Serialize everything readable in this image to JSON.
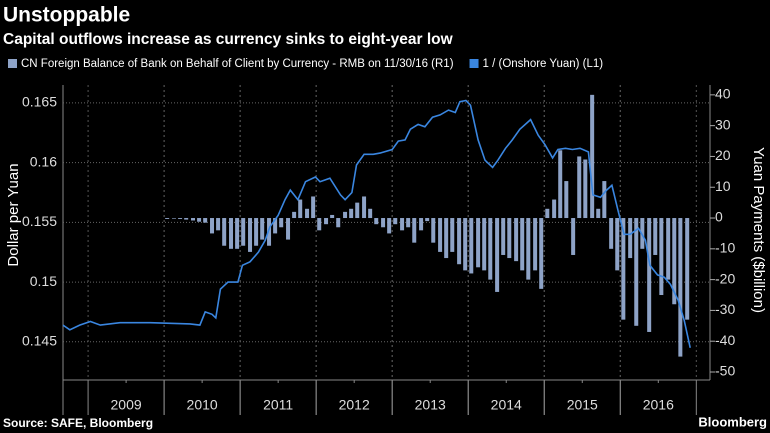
{
  "chart_data": {
    "type": "bar-line",
    "title": "Unstoppable",
    "subtitle": "Capital outflows increase as currency sinks to eight-year low",
    "y_label": "Dollar per Yuan",
    "y2_label": "Yuan Payments ($billion)",
    "source": "Source: SAFE, Bloomberg",
    "brand": "Bloomberg",
    "xlim": [
      2008.67,
      2017.18
    ],
    "xticks": [
      {
        "value": 2009.5,
        "label": "2009"
      },
      {
        "value": 2010.5,
        "label": "2010"
      },
      {
        "value": 2011.5,
        "label": "2011"
      },
      {
        "value": 2012.5,
        "label": "2012"
      },
      {
        "value": 2013.5,
        "label": "2013"
      },
      {
        "value": 2014.5,
        "label": "2014"
      },
      {
        "value": 2015.5,
        "label": "2015"
      },
      {
        "value": 2016.5,
        "label": "2016"
      }
    ],
    "ylim": [
      0.1418,
      0.1665
    ],
    "yticks": [
      0.145,
      0.15,
      0.155,
      0.16,
      0.165
    ],
    "y2lim": [
      -52.6,
      43.2
    ],
    "y2ticks": [
      -50,
      -40,
      -30,
      -20,
      -10,
      0,
      10,
      20,
      30,
      40
    ],
    "grid": true,
    "series": [
      {
        "name": "CN Foreign Balance of Bank on Behalf of Client by Currency - RMB  on 11/30/16 (R1)",
        "kind": "bar",
        "axis": "y2",
        "color": "#8ea3c7",
        "x": [
          2010.04,
          2010.13,
          2010.21,
          2010.29,
          2010.38,
          2010.46,
          2010.54,
          2010.63,
          2010.71,
          2010.79,
          2010.88,
          2010.96,
          2011.04,
          2011.13,
          2011.21,
          2011.29,
          2011.38,
          2011.46,
          2011.54,
          2011.63,
          2011.71,
          2011.79,
          2011.88,
          2011.96,
          2012.04,
          2012.13,
          2012.21,
          2012.29,
          2012.38,
          2012.46,
          2012.54,
          2012.63,
          2012.71,
          2012.79,
          2012.88,
          2012.96,
          2013.04,
          2013.13,
          2013.21,
          2013.29,
          2013.38,
          2013.46,
          2013.54,
          2013.63,
          2013.71,
          2013.79,
          2013.88,
          2013.96,
          2014.04,
          2014.13,
          2014.21,
          2014.29,
          2014.38,
          2014.46,
          2014.54,
          2014.63,
          2014.71,
          2014.79,
          2014.88,
          2014.96,
          2015.04,
          2015.13,
          2015.21,
          2015.29,
          2015.38,
          2015.46,
          2015.54,
          2015.63,
          2015.71,
          2015.79,
          2015.88,
          2015.96,
          2016.04,
          2016.13,
          2016.21,
          2016.29,
          2016.38,
          2016.46,
          2016.54,
          2016.63,
          2016.71,
          2016.79,
          2016.88
        ],
        "values": [
          -0.3,
          -0.2,
          -0.3,
          -0.5,
          -0.8,
          -1.2,
          -1.5,
          -5,
          -4,
          -9,
          -10,
          -10,
          -9,
          -11,
          -9,
          -7,
          -9,
          -5,
          -3,
          -7,
          2,
          6,
          3,
          7,
          -4,
          -2,
          1,
          -3,
          2,
          3,
          5,
          7,
          3,
          -2,
          -3,
          -5,
          -2,
          -4,
          -3,
          -8,
          -4,
          -1,
          -8,
          -11,
          -13,
          -11,
          -15,
          -17,
          -18,
          -16,
          -17,
          -20,
          -24,
          -12,
          -13,
          -14,
          -17,
          -20,
          -17,
          -23,
          3,
          6,
          22,
          12,
          -12,
          20,
          19,
          40,
          3,
          12,
          -10,
          -17,
          -33,
          -13,
          -35,
          -10,
          -37,
          -12,
          -25,
          -20,
          -28,
          -45,
          -33
        ]
      },
      {
        "name": "1 / (Onshore Yuan) (L1)",
        "kind": "line",
        "axis": "y",
        "color": "#3a86e0",
        "x": [
          2008.67,
          2008.76,
          2008.89,
          2009.03,
          2009.16,
          2009.42,
          2009.82,
          2010.34,
          2010.47,
          2010.54,
          2010.63,
          2010.68,
          2010.74,
          2010.84,
          2010.97,
          2011.03,
          2011.13,
          2011.24,
          2011.33,
          2011.39,
          2011.5,
          2011.59,
          2011.66,
          2011.76,
          2011.86,
          2011.99,
          2012.05,
          2012.18,
          2012.32,
          2012.38,
          2012.47,
          2012.53,
          2012.63,
          2012.75,
          2012.84,
          2013.0,
          2013.08,
          2013.17,
          2013.24,
          2013.34,
          2013.43,
          2013.53,
          2013.63,
          2013.74,
          2013.83,
          2013.89,
          2013.97,
          2014.03,
          2014.13,
          2014.22,
          2014.32,
          2014.39,
          2014.49,
          2014.58,
          2014.68,
          2014.75,
          2014.82,
          2014.92,
          2015.01,
          2015.11,
          2015.18,
          2015.28,
          2015.37,
          2015.47,
          2015.58,
          2015.64,
          2015.74,
          2015.82,
          2015.89,
          2015.97,
          2016.05,
          2016.13,
          2016.24,
          2016.33,
          2016.39,
          2016.49,
          2016.58,
          2016.66,
          2016.76,
          2016.84,
          2016.92
        ],
        "values": [
          0.1464,
          0.146,
          0.1464,
          0.1467,
          0.1464,
          0.1466,
          0.1466,
          0.1465,
          0.1464,
          0.1475,
          0.1473,
          0.147,
          0.1494,
          0.15,
          0.15,
          0.1514,
          0.1517,
          0.1525,
          0.1535,
          0.1546,
          0.1556,
          0.1569,
          0.1577,
          0.1569,
          0.1584,
          0.1588,
          0.1584,
          0.1587,
          0.1573,
          0.1569,
          0.1575,
          0.1598,
          0.1607,
          0.1607,
          0.1608,
          0.1611,
          0.1618,
          0.1619,
          0.1628,
          0.1632,
          0.163,
          0.1638,
          0.164,
          0.1644,
          0.1642,
          0.1651,
          0.1652,
          0.1648,
          0.1619,
          0.1602,
          0.1596,
          0.1602,
          0.1612,
          0.1619,
          0.1628,
          0.1632,
          0.1636,
          0.1623,
          0.1615,
          0.1604,
          0.1611,
          0.1612,
          0.1611,
          0.1612,
          0.1609,
          0.1573,
          0.1571,
          0.1577,
          0.1581,
          0.156,
          0.154,
          0.154,
          0.1545,
          0.1535,
          0.1514,
          0.1506,
          0.1504,
          0.1498,
          0.1485,
          0.1468,
          0.1445
        ]
      }
    ]
  }
}
